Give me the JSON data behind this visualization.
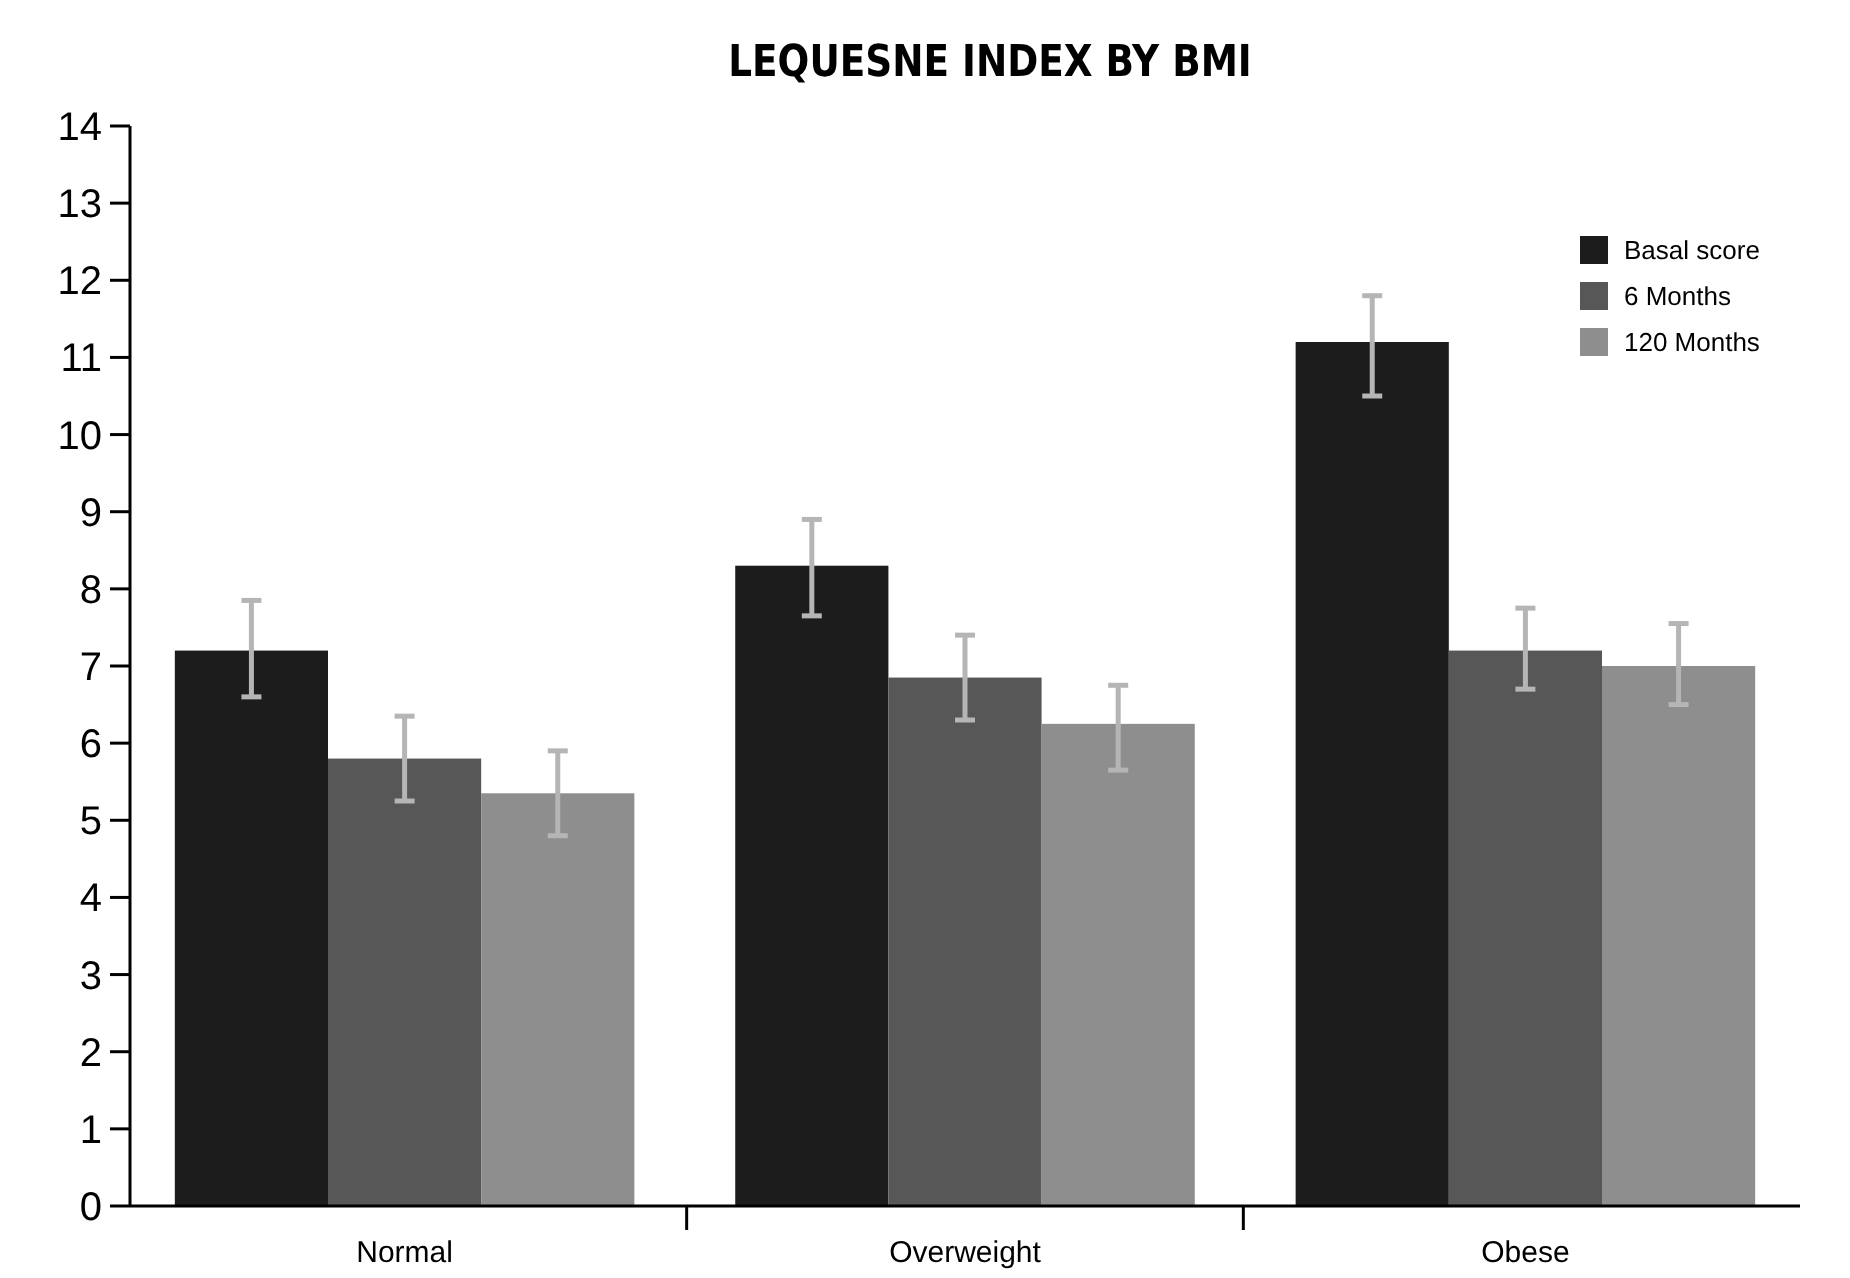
{
  "chart_data": {
    "type": "bar",
    "title": "LEQUESNE INDEX BY BMI",
    "categories": [
      "Normal",
      "Overweight",
      "Obese"
    ],
    "series": [
      {
        "name": "Basal score",
        "color": "#1c1c1c",
        "values": [
          7.2,
          8.3,
          11.2
        ],
        "errors": [
          [
            6.6,
            7.85
          ],
          [
            7.65,
            8.9
          ],
          [
            10.5,
            11.8
          ]
        ]
      },
      {
        "name": "6 Months",
        "color": "#575757",
        "values": [
          5.8,
          6.85,
          7.2
        ],
        "errors": [
          [
            5.25,
            6.35
          ],
          [
            6.3,
            7.4
          ],
          [
            6.7,
            7.75
          ]
        ]
      },
      {
        "name": "120 Months",
        "color": "#8e8e8e",
        "values": [
          5.35,
          6.25,
          7.0
        ],
        "errors": [
          [
            4.8,
            5.9
          ],
          [
            5.65,
            6.75
          ],
          [
            6.5,
            7.55
          ]
        ]
      }
    ],
    "ylim": [
      0,
      14
    ],
    "yticks": [
      0,
      1,
      2,
      3,
      4,
      5,
      6,
      7,
      8,
      9,
      10,
      11,
      12,
      13,
      14
    ],
    "grid": false,
    "legend": "top right"
  }
}
